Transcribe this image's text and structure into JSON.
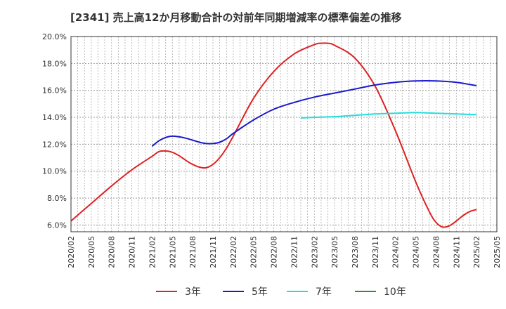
{
  "chart_data": {
    "type": "line",
    "title": "[2341]  売上高12か月移動合計の対前年同期増減率の標準偏差の推移",
    "xlabel": "",
    "ylabel": "",
    "y_unit": "%",
    "ylim": [
      5.5,
      20.0
    ],
    "yticks": [
      6.0,
      8.0,
      10.0,
      12.0,
      14.0,
      16.0,
      18.0,
      20.0
    ],
    "ytick_labels": [
      "6.0%",
      "8.0%",
      "10.0%",
      "12.0%",
      "14.0%",
      "16.0%",
      "18.0%",
      "20.0%"
    ],
    "x_range": [
      "2020/02",
      "2025/05"
    ],
    "xtick_labels": [
      "2020/02",
      "2020/05",
      "2020/08",
      "2020/11",
      "2021/02",
      "2021/05",
      "2021/08",
      "2021/11",
      "2022/02",
      "2022/05",
      "2022/08",
      "2022/11",
      "2023/02",
      "2023/05",
      "2023/08",
      "2023/11",
      "2024/02",
      "2024/05",
      "2024/08",
      "2024/11",
      "2025/02",
      "2025/05"
    ],
    "grid": true,
    "legend_position": "bottom",
    "series": [
      {
        "name": "3年",
        "color": "#dd2222",
        "points": [
          [
            "2020/02",
            6.3
          ],
          [
            "2020/05",
            7.6
          ],
          [
            "2020/08",
            8.9
          ],
          [
            "2020/11",
            10.1
          ],
          [
            "2021/02",
            11.1
          ],
          [
            "2021/03",
            11.45
          ],
          [
            "2021/04",
            11.5
          ],
          [
            "2021/05",
            11.4
          ],
          [
            "2021/06",
            11.15
          ],
          [
            "2021/07",
            10.8
          ],
          [
            "2021/08",
            10.5
          ],
          [
            "2021/09",
            10.3
          ],
          [
            "2021/10",
            10.25
          ],
          [
            "2021/11",
            10.5
          ],
          [
            "2021/12",
            11.0
          ],
          [
            "2022/01",
            11.7
          ],
          [
            "2022/02",
            12.6
          ],
          [
            "2022/05",
            15.4
          ],
          [
            "2022/08",
            17.4
          ],
          [
            "2022/11",
            18.7
          ],
          [
            "2023/02",
            19.4
          ],
          [
            "2023/03",
            19.5
          ],
          [
            "2023/04",
            19.5
          ],
          [
            "2023/05",
            19.35
          ],
          [
            "2023/08",
            18.4
          ],
          [
            "2023/11",
            16.3
          ],
          [
            "2024/02",
            13.0
          ],
          [
            "2024/05",
            9.2
          ],
          [
            "2024/07",
            7.0
          ],
          [
            "2024/08",
            6.2
          ],
          [
            "2024/09",
            5.85
          ],
          [
            "2024/10",
            5.95
          ],
          [
            "2024/11",
            6.3
          ],
          [
            "2024/12",
            6.7
          ],
          [
            "2025/01",
            7.0
          ],
          [
            "2025/02",
            7.15
          ]
        ]
      },
      {
        "name": "5年",
        "color": "#1a1acc",
        "points": [
          [
            "2021/02",
            11.85
          ],
          [
            "2021/03",
            12.25
          ],
          [
            "2021/04",
            12.5
          ],
          [
            "2021/05",
            12.6
          ],
          [
            "2021/06",
            12.55
          ],
          [
            "2021/07",
            12.45
          ],
          [
            "2021/08",
            12.3
          ],
          [
            "2021/09",
            12.15
          ],
          [
            "2021/10",
            12.05
          ],
          [
            "2021/11",
            12.05
          ],
          [
            "2021/12",
            12.15
          ],
          [
            "2022/01",
            12.4
          ],
          [
            "2022/02",
            12.8
          ],
          [
            "2022/05",
            13.8
          ],
          [
            "2022/08",
            14.6
          ],
          [
            "2022/11",
            15.1
          ],
          [
            "2023/02",
            15.5
          ],
          [
            "2023/05",
            15.8
          ],
          [
            "2023/08",
            16.1
          ],
          [
            "2023/11",
            16.4
          ],
          [
            "2024/02",
            16.6
          ],
          [
            "2024/05",
            16.7
          ],
          [
            "2024/08",
            16.7
          ],
          [
            "2024/11",
            16.6
          ],
          [
            "2025/02",
            16.35
          ]
        ]
      },
      {
        "name": "7年",
        "color": "#22dddd",
        "points": [
          [
            "2022/12",
            13.95
          ],
          [
            "2023/02",
            14.0
          ],
          [
            "2023/05",
            14.05
          ],
          [
            "2023/08",
            14.15
          ],
          [
            "2023/11",
            14.25
          ],
          [
            "2024/02",
            14.3
          ],
          [
            "2024/05",
            14.35
          ],
          [
            "2024/08",
            14.3
          ],
          [
            "2024/11",
            14.25
          ],
          [
            "2025/02",
            14.2
          ]
        ]
      },
      {
        "name": "10年",
        "color": "#229922",
        "points": []
      }
    ]
  }
}
